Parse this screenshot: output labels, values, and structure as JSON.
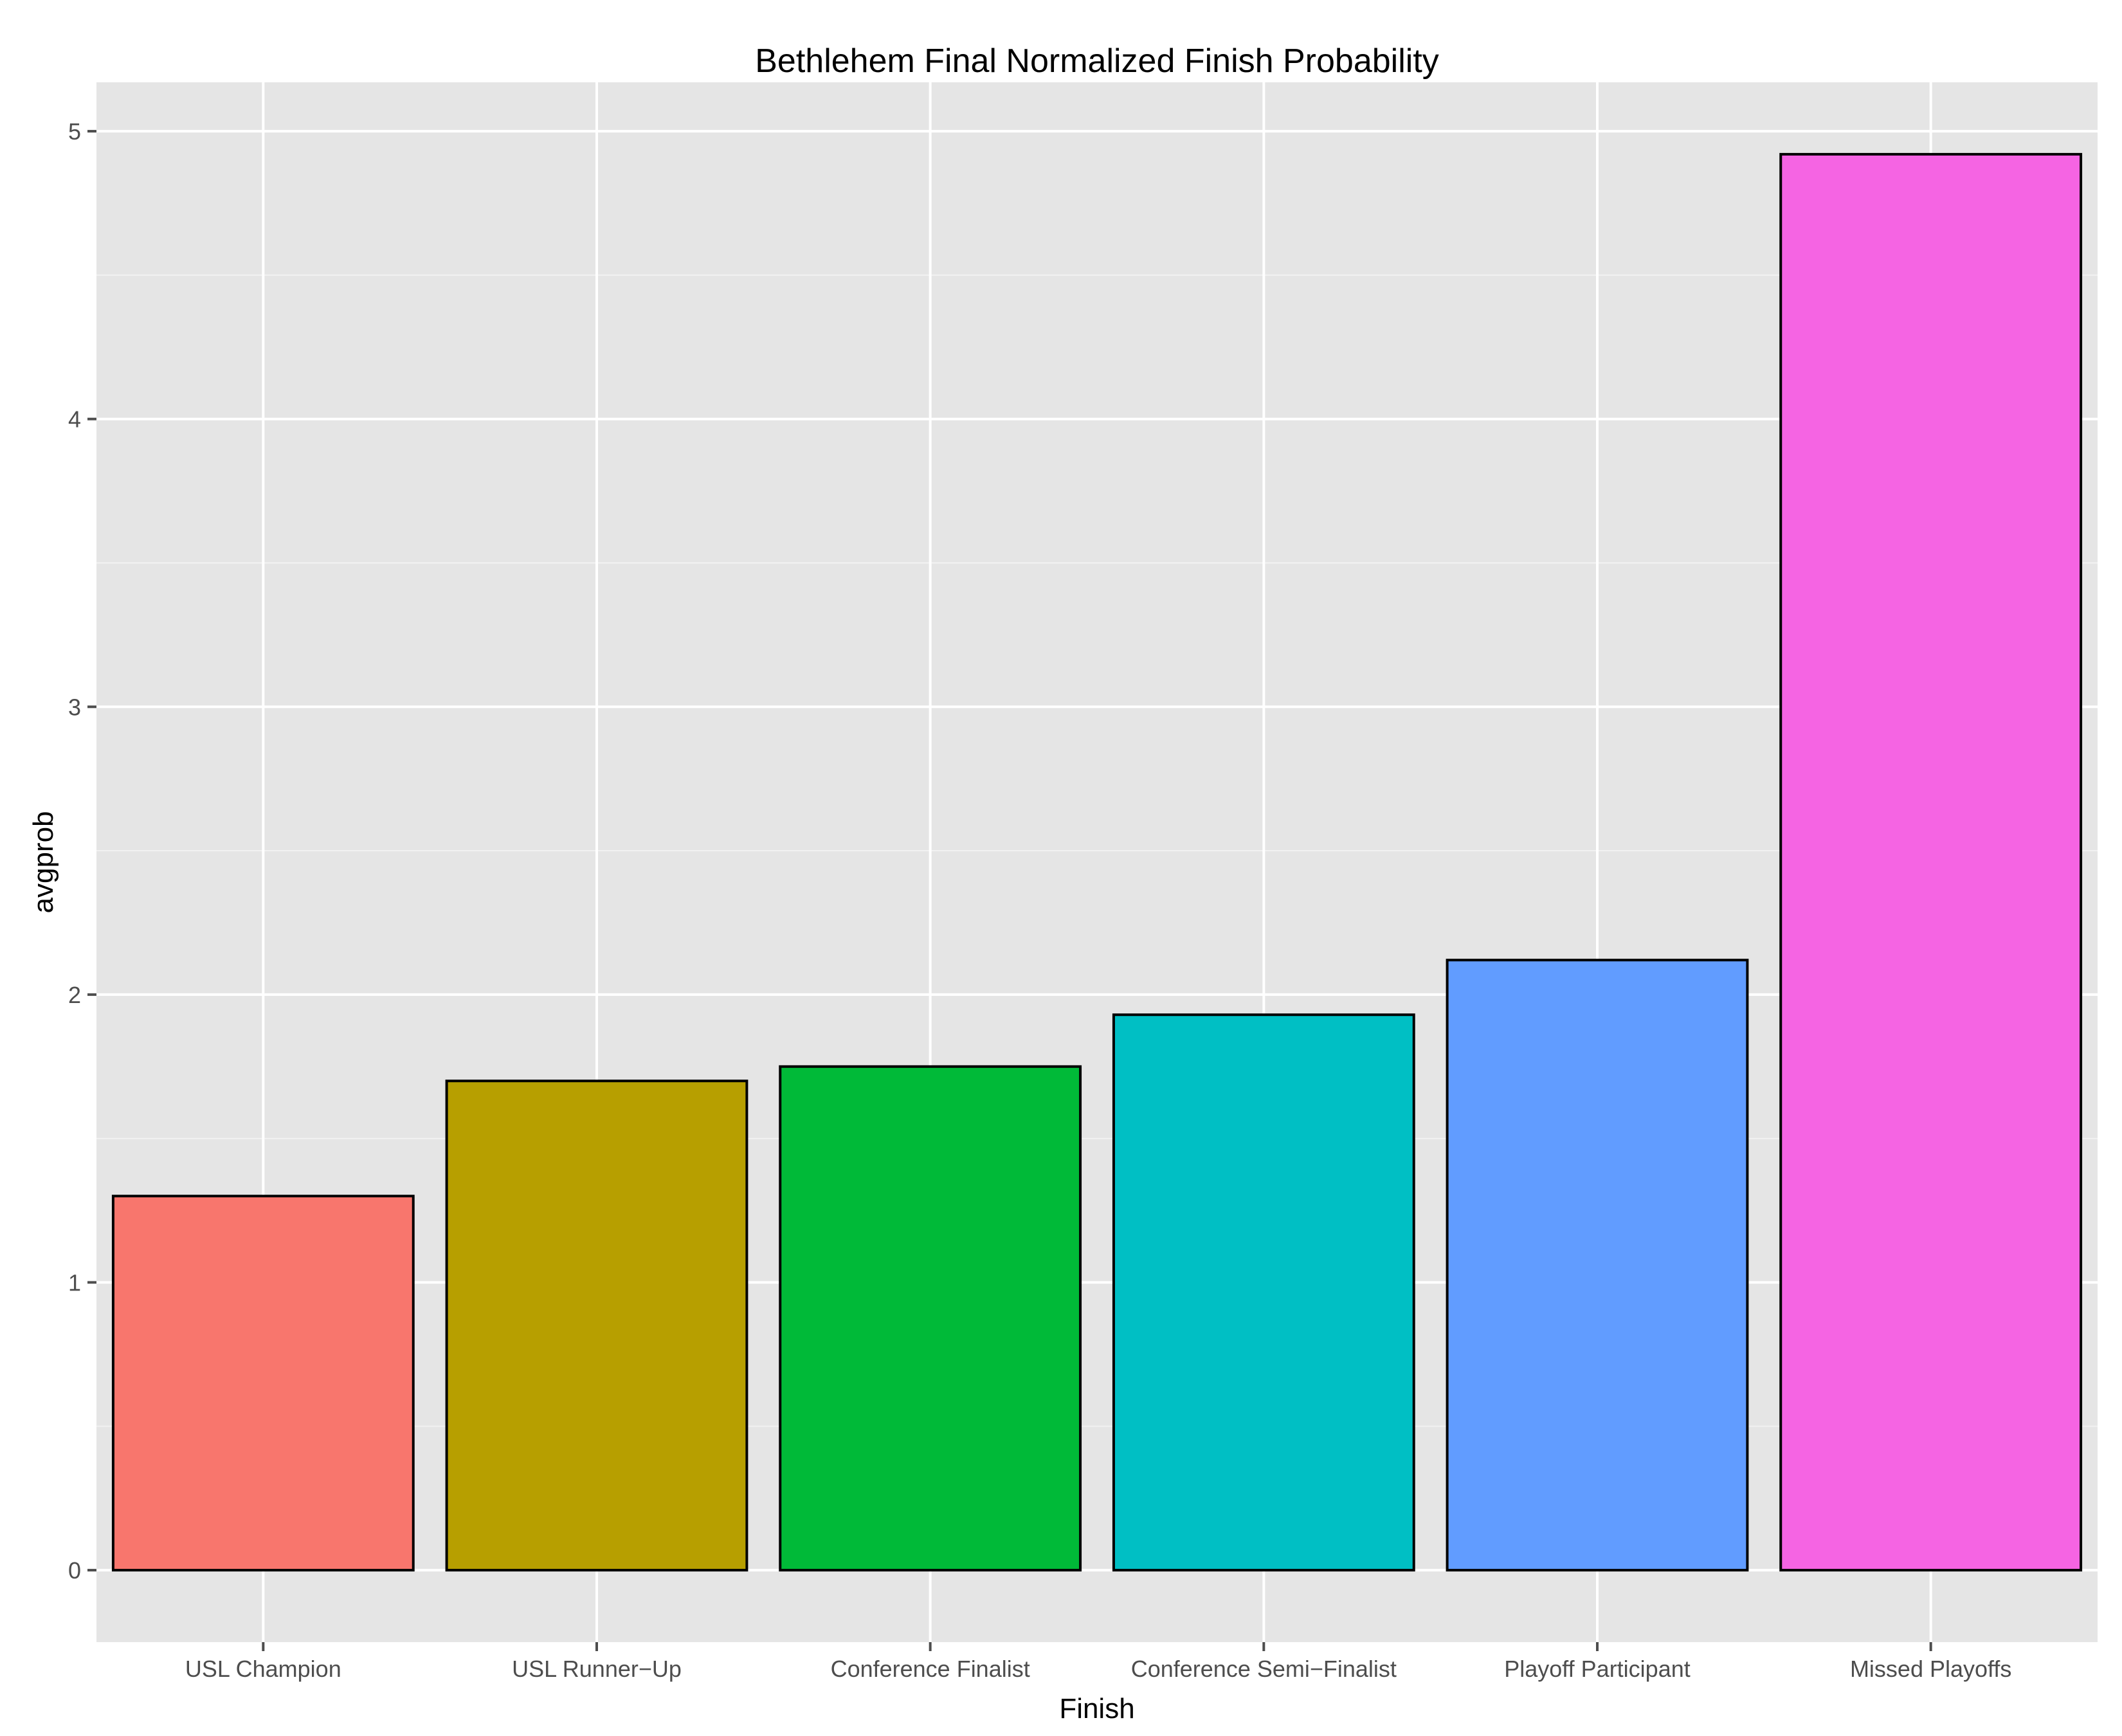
{
  "chart_data": {
    "type": "bar",
    "title": "Bethlehem Final Normalized Finish Probability",
    "xlabel": "Finish",
    "ylabel": "avgprob",
    "categories": [
      "USL Champion",
      "USL Runner−Up",
      "Conference Finalist",
      "Conference Semi−Finalist",
      "Playoff Participant",
      "Missed Playoffs"
    ],
    "values": [
      1.3,
      1.7,
      1.75,
      1.93,
      2.12,
      4.92
    ],
    "colors": [
      "#F8766D",
      "#B79F00",
      "#00BA38",
      "#00BFC4",
      "#619CFF",
      "#F564E3"
    ],
    "ylim": [
      -0.25,
      5.17
    ],
    "yticks": [
      0,
      1,
      2,
      3,
      4,
      5
    ],
    "grid": true,
    "background": "#E5E5E5",
    "legend": "none"
  }
}
